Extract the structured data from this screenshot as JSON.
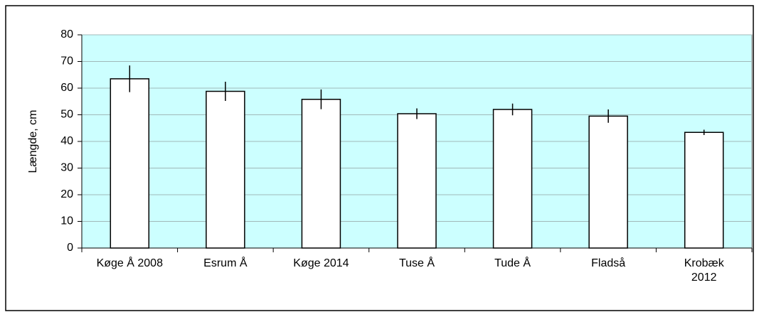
{
  "chart_data": {
    "type": "bar",
    "y_label": "Længde, cm",
    "categories": [
      "Køge Å 2008",
      "Esrum Å",
      "Køge 2014",
      "Tuse Å",
      "Tude Å",
      "Fladså",
      "Krobæk\n2012"
    ],
    "values": [
      63.5,
      58.8,
      55.8,
      50.4,
      52.0,
      49.5,
      43.4
    ],
    "errors": [
      5.0,
      3.6,
      3.7,
      2.0,
      2.2,
      2.5,
      1.0
    ],
    "color": "#ffffff",
    "background": "#ccffff",
    "ylim": [
      0,
      80
    ],
    "yticks": [
      0,
      10,
      20,
      30,
      40,
      50,
      60,
      70,
      80
    ],
    "grid": true
  }
}
